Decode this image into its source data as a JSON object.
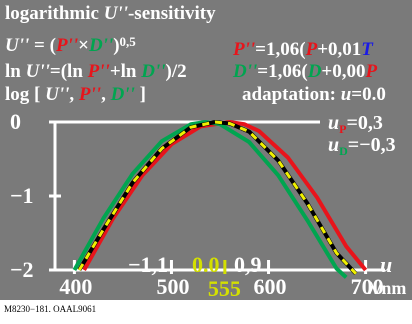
{
  "header": {
    "title_prefix": "logarithmic ",
    "title_var": "U''",
    "title_suffix": "-sensitivity",
    "eq1": {
      "lhs": "U''",
      "eq": " = (",
      "a": "P''",
      "x": "×",
      "b": "D''",
      "close": ")",
      "exp": "0,5"
    },
    "eq2": {
      "ln": "ln ",
      "lhs": "U''",
      "eq": "=(ln ",
      "a": "P''",
      "plus": "+ln ",
      "b": "D''",
      "tail": ")/2"
    },
    "eq3": {
      "pre": "log [ ",
      "u": "U''",
      "c1": ", ",
      "p": "P''",
      "c2": ", ",
      "d": "D''",
      "post": " ]"
    },
    "eq_p": {
      "lhs": "P''",
      "mid": "=1,06(",
      "p": "P",
      "mid2": "+0,01",
      "t": "T"
    },
    "eq_d": {
      "lhs": "D''",
      "mid": "=1,06(",
      "d": "D",
      "mid2": "+0,00",
      "p": "P"
    },
    "adaptation": {
      "label": "adaptation: ",
      "u": "u",
      "val": "=0.0"
    }
  },
  "legend": {
    "u_p": {
      "u": "u",
      "sub": "P",
      "val": "=0,3"
    },
    "u_d": {
      "u": "u",
      "sub": "D",
      "val": "=−0,3"
    }
  },
  "u_axis": {
    "left": "−1,1",
    "mid": "0.0",
    "right": "0,9",
    "label": "u"
  },
  "footer": "M8230−181. OAAL9061",
  "colors": {
    "background": "#7a7a7a",
    "text": "#ffffff",
    "red": "#e8141b",
    "green": "#00a550",
    "black": "#000000",
    "yellow": "#f0f000",
    "lime": "#d4e000",
    "blue": "#1a1ae6"
  },
  "chart_data": {
    "type": "line",
    "x_unit": "nm",
    "xlabel": "λ/nm",
    "xlim": [
      380,
      720
    ],
    "ylim": [
      -2.1,
      0.1
    ],
    "xticks": [
      400,
      500,
      600,
      700
    ],
    "xtick_labels": [
      "400",
      "500",
      "600",
      "700"
    ],
    "marked_x": 555,
    "marked_x_label": "555",
    "yticks": [
      0,
      -1,
      -2
    ],
    "ytick_labels": [
      "0",
      "−1",
      "−2"
    ],
    "grid": false,
    "series": [
      {
        "color": "red",
        "x": [
          410,
          440,
          470,
          500,
          530,
          560,
          575,
          590,
          620,
          650,
          680,
          700
        ],
        "y": [
          -2.0,
          -1.3,
          -0.72,
          -0.3,
          -0.06,
          0.0,
          -0.03,
          -0.12,
          -0.48,
          -1.02,
          -1.68,
          -2.0
        ]
      },
      {
        "color": "green",
        "x": [
          400,
          430,
          460,
          490,
          520,
          535,
          550,
          580,
          610,
          640,
          670,
          680
        ],
        "y": [
          -2.0,
          -1.3,
          -0.7,
          -0.26,
          -0.03,
          0.0,
          -0.03,
          -0.27,
          -0.72,
          -1.33,
          -1.98,
          -2.1
        ]
      },
      {
        "color": "black-yellow dashed",
        "x": [
          405,
          430,
          460,
          490,
          520,
          545,
          560,
          580,
          610,
          640,
          670,
          690
        ],
        "y": [
          -2.0,
          -1.45,
          -0.82,
          -0.36,
          -0.07,
          0.0,
          -0.02,
          -0.13,
          -0.52,
          -1.1,
          -1.77,
          -2.05
        ]
      }
    ]
  }
}
